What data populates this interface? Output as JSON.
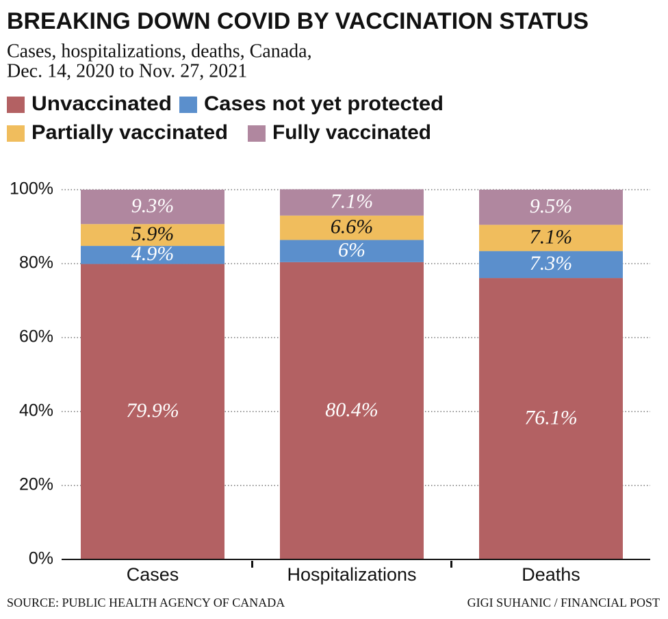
{
  "chart_data": {
    "type": "stacked_bar",
    "title": "BREAKING DOWN COVID BY VACCINATION STATUS",
    "subtitle": [
      "Cases, hospitalizations, deaths, Canada,",
      "Dec. 14, 2020 to Nov. 27, 2021"
    ],
    "categories": [
      "Cases",
      "Hospitalizations",
      "Deaths"
    ],
    "series": [
      {
        "name": "Unvaccinated",
        "color": "#b36163",
        "label_color": "#ffffff",
        "values": [
          79.9,
          80.4,
          76.1
        ],
        "value_labels": [
          "79.9%",
          "80.4%",
          "76.1%"
        ]
      },
      {
        "name": "Cases not yet protected",
        "color": "#5b8fcc",
        "label_color": "#ffffff",
        "values": [
          4.9,
          6,
          7.3
        ],
        "value_labels": [
          "4.9%",
          "6%",
          "7.3%"
        ]
      },
      {
        "name": "Partially vaccinated",
        "color": "#f0bd5d",
        "label_color": "#111111",
        "values": [
          5.9,
          6.6,
          7.1
        ],
        "value_labels": [
          "5.9%",
          "6.6%",
          "7.1%"
        ]
      },
      {
        "name": "Fully vaccinated",
        "color": "#b0879f",
        "label_color": "#ffffff",
        "values": [
          9.3,
          7.1,
          9.5
        ],
        "value_labels": [
          "9.3%",
          "7.1%",
          "9.5%"
        ]
      }
    ],
    "ylim": [
      0,
      100
    ],
    "yticks": [
      {
        "value": 0,
        "label": "0%"
      },
      {
        "value": 20,
        "label": "20%"
      },
      {
        "value": 40,
        "label": "40%"
      },
      {
        "value": 60,
        "label": "60%"
      },
      {
        "value": 80,
        "label": "80%"
      },
      {
        "value": 100,
        "label": "100%"
      }
    ],
    "grid": true,
    "source": "SOURCE: PUBLIC HEALTH AGENCY OF CANADA",
    "credit": "GIGI SUHANIC / FINANCIAL POST"
  }
}
